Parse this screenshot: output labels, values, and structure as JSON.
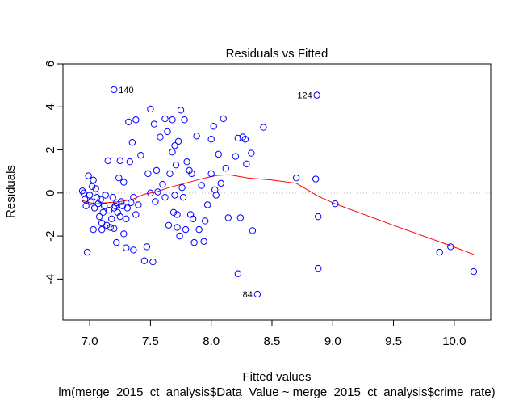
{
  "chart_data": {
    "type": "scatter",
    "title": "Residuals vs Fitted",
    "xlabel": "Fitted values",
    "subtitle": "lm(merge_2015_ct_analysis$Data_Value ~ merge_2015_ct_analysis$crime_rate)",
    "ylabel": "Residuals",
    "xlim": [
      6.78,
      10.3
    ],
    "ylim": [
      -5.9,
      6
    ],
    "xticks": [
      "7.0",
      "7.5",
      "8.0",
      "8.5",
      "9.0",
      "9.5",
      "10.0"
    ],
    "xtick_values": [
      7.0,
      7.5,
      8.0,
      8.5,
      9.0,
      9.5,
      10.0
    ],
    "yticks": [
      "-4",
      "-2",
      "0",
      "2",
      "4",
      "6"
    ],
    "ytick_values": [
      -4,
      -2,
      0,
      2,
      4,
      6
    ],
    "reference_line_y": 0,
    "point_color": "#0000ff",
    "smooth_color": "#ff0000",
    "ref_line_color": "#bebebe",
    "points": [
      {
        "x": 6.94,
        "y": 0.1
      },
      {
        "x": 6.95,
        "y": 0.0
      },
      {
        "x": 6.96,
        "y": -0.3
      },
      {
        "x": 6.97,
        "y": -0.6
      },
      {
        "x": 6.98,
        "y": -2.75
      },
      {
        "x": 6.99,
        "y": 0.8
      },
      {
        "x": 7.0,
        "y": -0.1
      },
      {
        "x": 7.01,
        "y": -0.4
      },
      {
        "x": 7.02,
        "y": 0.3
      },
      {
        "x": 7.03,
        "y": 0.6
      },
      {
        "x": 7.03,
        "y": -1.7
      },
      {
        "x": 7.04,
        "y": -0.7
      },
      {
        "x": 7.05,
        "y": 0.2
      },
      {
        "x": 7.06,
        "y": -0.2
      },
      {
        "x": 7.07,
        "y": -0.5
      },
      {
        "x": 7.08,
        "y": -1.1
      },
      {
        "x": 7.09,
        "y": -0.3
      },
      {
        "x": 7.1,
        "y": -1.4
      },
      {
        "x": 7.1,
        "y": -1.7
      },
      {
        "x": 7.11,
        "y": -0.9
      },
      {
        "x": 7.12,
        "y": -0.6
      },
      {
        "x": 7.13,
        "y": -0.1
      },
      {
        "x": 7.14,
        "y": -1.5
      },
      {
        "x": 7.15,
        "y": 1.5
      },
      {
        "x": 7.16,
        "y": -0.8
      },
      {
        "x": 7.17,
        "y": -1.6
      },
      {
        "x": 7.18,
        "y": -1.2
      },
      {
        "x": 7.19,
        "y": -0.2
      },
      {
        "x": 7.2,
        "y": -0.7
      },
      {
        "x": 7.2,
        "y": -1.65
      },
      {
        "x": 7.21,
        "y": -0.6
      },
      {
        "x": 7.22,
        "y": -0.45
      },
      {
        "x": 7.22,
        "y": -2.3
      },
      {
        "x": 7.23,
        "y": -0.9
      },
      {
        "x": 7.24,
        "y": 0.7
      },
      {
        "x": 7.25,
        "y": -1.1
      },
      {
        "x": 7.25,
        "y": 1.5
      },
      {
        "x": 7.26,
        "y": -0.4
      },
      {
        "x": 7.27,
        "y": -0.6
      },
      {
        "x": 7.28,
        "y": 0.5
      },
      {
        "x": 7.28,
        "y": -1.9
      },
      {
        "x": 7.3,
        "y": -2.55
      },
      {
        "x": 7.3,
        "y": -1.2
      },
      {
        "x": 7.31,
        "y": -0.7
      },
      {
        "x": 7.32,
        "y": 3.3
      },
      {
        "x": 7.33,
        "y": 1.45
      },
      {
        "x": 7.34,
        "y": -0.45
      },
      {
        "x": 7.35,
        "y": 2.35
      },
      {
        "x": 7.36,
        "y": -0.2
      },
      {
        "x": 7.36,
        "y": -2.65
      },
      {
        "x": 7.38,
        "y": 3.4
      },
      {
        "x": 7.38,
        "y": -1.0
      },
      {
        "x": 7.4,
        "y": -0.55
      },
      {
        "x": 7.42,
        "y": 1.75
      },
      {
        "x": 7.45,
        "y": -3.15
      },
      {
        "x": 7.47,
        "y": -2.5
      },
      {
        "x": 7.48,
        "y": 0.9
      },
      {
        "x": 7.5,
        "y": 3.9
      },
      {
        "x": 7.5,
        "y": 0.0
      },
      {
        "x": 7.52,
        "y": -3.2
      },
      {
        "x": 7.53,
        "y": 3.2
      },
      {
        "x": 7.54,
        "y": -0.4
      },
      {
        "x": 7.55,
        "y": 1.05
      },
      {
        "x": 7.56,
        "y": 0.05
      },
      {
        "x": 7.58,
        "y": 2.6
      },
      {
        "x": 7.6,
        "y": 0.4
      },
      {
        "x": 7.62,
        "y": 3.45
      },
      {
        "x": 7.62,
        "y": -0.2
      },
      {
        "x": 7.64,
        "y": 2.85
      },
      {
        "x": 7.65,
        "y": -1.5
      },
      {
        "x": 7.66,
        "y": 0.9
      },
      {
        "x": 7.68,
        "y": 3.4
      },
      {
        "x": 7.68,
        "y": 1.9
      },
      {
        "x": 7.69,
        "y": -0.9
      },
      {
        "x": 7.7,
        "y": 2.2
      },
      {
        "x": 7.7,
        "y": -0.1
      },
      {
        "x": 7.71,
        "y": 1.3
      },
      {
        "x": 7.72,
        "y": -1.0
      },
      {
        "x": 7.72,
        "y": -1.6
      },
      {
        "x": 7.73,
        "y": 2.4
      },
      {
        "x": 7.74,
        "y": -2.0
      },
      {
        "x": 7.75,
        "y": 3.85
      },
      {
        "x": 7.76,
        "y": 0.25
      },
      {
        "x": 7.77,
        "y": -0.2
      },
      {
        "x": 7.78,
        "y": 3.4
      },
      {
        "x": 7.79,
        "y": -1.7
      },
      {
        "x": 7.8,
        "y": 1.45
      },
      {
        "x": 7.82,
        "y": 1.05
      },
      {
        "x": 7.83,
        "y": -1.0
      },
      {
        "x": 7.84,
        "y": 0.9
      },
      {
        "x": 7.85,
        "y": -1.2
      },
      {
        "x": 7.86,
        "y": -2.3
      },
      {
        "x": 7.88,
        "y": 2.65
      },
      {
        "x": 7.9,
        "y": -1.7
      },
      {
        "x": 7.92,
        "y": 0.35
      },
      {
        "x": 7.94,
        "y": -2.25
      },
      {
        "x": 7.95,
        "y": -1.3
      },
      {
        "x": 7.97,
        "y": -0.55
      },
      {
        "x": 8.0,
        "y": 0.9
      },
      {
        "x": 8.0,
        "y": 2.5
      },
      {
        "x": 8.02,
        "y": 3.1
      },
      {
        "x": 8.03,
        "y": 0.15
      },
      {
        "x": 8.04,
        "y": -0.1
      },
      {
        "x": 8.06,
        "y": 1.8
      },
      {
        "x": 8.08,
        "y": 0.45
      },
      {
        "x": 8.1,
        "y": 3.45
      },
      {
        "x": 8.12,
        "y": 1.15
      },
      {
        "x": 8.14,
        "y": -1.15
      },
      {
        "x": 8.2,
        "y": 1.7
      },
      {
        "x": 8.22,
        "y": -3.75
      },
      {
        "x": 8.22,
        "y": 2.55
      },
      {
        "x": 8.24,
        "y": -1.15
      },
      {
        "x": 8.26,
        "y": 2.6
      },
      {
        "x": 8.28,
        "y": 2.5
      },
      {
        "x": 8.29,
        "y": 1.35
      },
      {
        "x": 8.33,
        "y": 1.85
      },
      {
        "x": 8.34,
        "y": -1.75
      },
      {
        "x": 8.43,
        "y": 3.05
      },
      {
        "x": 8.7,
        "y": 0.7
      },
      {
        "x": 8.86,
        "y": 0.65
      },
      {
        "x": 8.88,
        "y": -1.1
      },
      {
        "x": 8.88,
        "y": -3.5
      },
      {
        "x": 9.02,
        "y": -0.5
      },
      {
        "x": 9.88,
        "y": -2.75
      },
      {
        "x": 9.97,
        "y": -2.5
      },
      {
        "x": 10.16,
        "y": -3.65
      }
    ],
    "labeled_points": [
      {
        "label": "140",
        "x": 7.2,
        "y": 4.8,
        "side": "right"
      },
      {
        "label": "124",
        "x": 8.87,
        "y": 4.55,
        "side": "left"
      },
      {
        "label": "84",
        "x": 8.38,
        "y": -4.7,
        "side": "left"
      }
    ],
    "smooth_line": [
      {
        "x": 6.94,
        "y": -0.35
      },
      {
        "x": 7.0,
        "y": -0.45
      },
      {
        "x": 7.05,
        "y": -0.5
      },
      {
        "x": 7.15,
        "y": -0.45
      },
      {
        "x": 7.25,
        "y": -0.4
      },
      {
        "x": 7.35,
        "y": -0.3
      },
      {
        "x": 7.45,
        "y": -0.05
      },
      {
        "x": 7.55,
        "y": 0.05
      },
      {
        "x": 7.65,
        "y": 0.25
      },
      {
        "x": 7.75,
        "y": 0.4
      },
      {
        "x": 7.85,
        "y": 0.55
      },
      {
        "x": 7.95,
        "y": 0.7
      },
      {
        "x": 8.05,
        "y": 0.82
      },
      {
        "x": 8.15,
        "y": 0.85
      },
      {
        "x": 8.3,
        "y": 0.7
      },
      {
        "x": 8.5,
        "y": 0.6
      },
      {
        "x": 8.7,
        "y": 0.45
      },
      {
        "x": 8.88,
        "y": -0.15
      },
      {
        "x": 9.02,
        "y": -0.5
      },
      {
        "x": 9.5,
        "y": -1.5
      },
      {
        "x": 9.97,
        "y": -2.45
      },
      {
        "x": 10.16,
        "y": -2.85
      }
    ]
  }
}
